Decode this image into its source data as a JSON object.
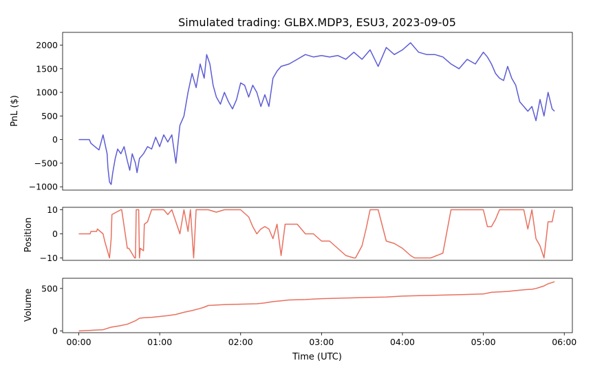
{
  "chart_data": [
    {
      "type": "line",
      "title": "Simulated trading: GLBX.MDP3, ESU3, 2023-09-05",
      "xlabel": "",
      "ylabel": "PnL ($)",
      "color": "#5b5bd6",
      "xlim": [
        -0.2,
        6.1
      ],
      "ylim": [
        -1070,
        2270
      ],
      "yticks": [
        -1000,
        -500,
        0,
        500,
        1000,
        1500,
        2000
      ],
      "ytick_labels": [
        "−1000",
        "−500",
        "0",
        "500",
        "1000",
        "1500",
        "2000"
      ],
      "x": [
        0.0,
        0.13,
        0.15,
        0.2,
        0.25,
        0.3,
        0.35,
        0.36,
        0.38,
        0.4,
        0.42,
        0.45,
        0.48,
        0.52,
        0.56,
        0.6,
        0.63,
        0.66,
        0.7,
        0.72,
        0.75,
        0.8,
        0.85,
        0.9,
        0.95,
        1.0,
        1.05,
        1.1,
        1.15,
        1.2,
        1.25,
        1.3,
        1.35,
        1.4,
        1.45,
        1.5,
        1.55,
        1.58,
        1.62,
        1.66,
        1.7,
        1.75,
        1.8,
        1.85,
        1.9,
        1.95,
        2.0,
        2.05,
        2.1,
        2.15,
        2.2,
        2.25,
        2.3,
        2.35,
        2.4,
        2.45,
        2.5,
        2.6,
        2.7,
        2.8,
        2.9,
        3.0,
        3.1,
        3.2,
        3.3,
        3.4,
        3.5,
        3.6,
        3.7,
        3.8,
        3.9,
        4.0,
        4.1,
        4.2,
        4.3,
        4.4,
        4.5,
        4.6,
        4.7,
        4.8,
        4.9,
        5.0,
        5.05,
        5.1,
        5.15,
        5.2,
        5.25,
        5.3,
        5.35,
        5.4,
        5.45,
        5.5,
        5.55,
        5.6,
        5.65,
        5.7,
        5.75,
        5.8,
        5.85,
        5.88
      ],
      "y": [
        0,
        0,
        -80,
        -150,
        -220,
        100,
        -300,
        -600,
        -900,
        -950,
        -700,
        -400,
        -200,
        -300,
        -150,
        -450,
        -650,
        -300,
        -500,
        -700,
        -400,
        -300,
        -150,
        -200,
        50,
        -150,
        100,
        -50,
        100,
        -500,
        300,
        500,
        1000,
        1400,
        1100,
        1600,
        1300,
        1800,
        1600,
        1150,
        900,
        750,
        1000,
        800,
        650,
        850,
        1200,
        1150,
        900,
        1150,
        1000,
        700,
        950,
        700,
        1300,
        1450,
        1550,
        1600,
        1700,
        1800,
        1750,
        1780,
        1750,
        1780,
        1700,
        1850,
        1700,
        1900,
        1550,
        1950,
        1800,
        1900,
        2050,
        1850,
        1800,
        1800,
        1750,
        1600,
        1500,
        1700,
        1600,
        1850,
        1750,
        1600,
        1400,
        1300,
        1250,
        1550,
        1300,
        1150,
        800,
        700,
        600,
        700,
        400,
        850,
        500,
        1000,
        650,
        600
      ]
    },
    {
      "type": "line",
      "xlabel": "",
      "ylabel": "Position",
      "color": "#e8705e",
      "xlim": [
        -0.2,
        6.1
      ],
      "ylim": [
        -11,
        11
      ],
      "yticks": [
        -10,
        0,
        10
      ],
      "ytick_labels": [
        "−10",
        "0",
        "10"
      ],
      "x": [
        0.0,
        0.14,
        0.15,
        0.22,
        0.23,
        0.3,
        0.32,
        0.38,
        0.4,
        0.41,
        0.52,
        0.53,
        0.6,
        0.62,
        0.69,
        0.7,
        0.71,
        0.74,
        0.75,
        0.76,
        0.8,
        0.81,
        0.85,
        0.9,
        0.95,
        1.0,
        1.05,
        1.1,
        1.15,
        1.25,
        1.3,
        1.35,
        1.38,
        1.42,
        1.45,
        1.5,
        1.6,
        1.7,
        1.8,
        1.9,
        2.0,
        2.1,
        2.15,
        2.2,
        2.25,
        2.3,
        2.35,
        2.4,
        2.45,
        2.5,
        2.55,
        2.6,
        2.7,
        2.8,
        2.9,
        3.0,
        3.1,
        3.2,
        3.3,
        3.4,
        3.42,
        3.5,
        3.55,
        3.6,
        3.7,
        3.8,
        3.9,
        3.95,
        4.0,
        4.1,
        4.15,
        4.25,
        4.35,
        4.5,
        4.6,
        4.7,
        4.8,
        4.9,
        4.95,
        5.0,
        5.05,
        5.1,
        5.15,
        5.2,
        5.3,
        5.4,
        5.5,
        5.55,
        5.6,
        5.65,
        5.7,
        5.75,
        5.8,
        5.85,
        5.88
      ],
      "y": [
        0,
        0,
        1,
        1,
        2,
        0,
        -3,
        -10,
        -2,
        8,
        10,
        10,
        -6,
        -6,
        -10,
        -10,
        10,
        10,
        -10,
        -6,
        -7,
        4,
        5,
        10,
        10,
        10,
        10,
        8,
        10,
        0,
        10,
        1,
        10,
        -10,
        10,
        10,
        10,
        9,
        10,
        10,
        10,
        7,
        3,
        0,
        2,
        3,
        2,
        -2,
        4,
        -9,
        4,
        4,
        4,
        0,
        0,
        -3,
        -3,
        -6,
        -9,
        -10,
        -10,
        -5,
        2,
        10,
        10,
        -3,
        -4,
        -5,
        -6,
        -9,
        -10,
        -10,
        -10,
        -8,
        10,
        10,
        10,
        10,
        10,
        10,
        3,
        3,
        6,
        10,
        10,
        10,
        10,
        2,
        10,
        -2,
        -5,
        -10,
        5,
        5,
        10
      ]
    },
    {
      "type": "line",
      "xlabel": "Time (UTC)",
      "ylabel": "Volume",
      "color": "#e8705e",
      "xlim": [
        -0.2,
        6.1
      ],
      "ylim": [
        -20,
        620
      ],
      "yticks": [
        0,
        500
      ],
      "ytick_labels": [
        "0",
        "500"
      ],
      "xticks": [
        0,
        1,
        2,
        3,
        4,
        5,
        6
      ],
      "xtick_labels": [
        "00:00",
        "01:00",
        "02:00",
        "03:00",
        "04:00",
        "05:00",
        "06:00"
      ],
      "x": [
        0.0,
        0.2,
        0.3,
        0.35,
        0.4,
        0.5,
        0.6,
        0.7,
        0.75,
        0.8,
        0.9,
        1.0,
        1.1,
        1.2,
        1.3,
        1.4,
        1.5,
        1.55,
        1.6,
        1.7,
        1.8,
        2.0,
        2.2,
        2.3,
        2.4,
        2.5,
        2.6,
        2.8,
        3.0,
        3.2,
        3.4,
        3.6,
        3.8,
        4.0,
        4.2,
        4.4,
        4.6,
        4.8,
        5.0,
        5.1,
        5.2,
        5.3,
        5.4,
        5.5,
        5.6,
        5.65,
        5.7,
        5.75,
        5.8,
        5.85,
        5.88
      ],
      "y": [
        0,
        10,
        15,
        30,
        45,
        60,
        80,
        120,
        150,
        155,
        160,
        170,
        180,
        195,
        220,
        240,
        265,
        280,
        300,
        305,
        310,
        315,
        320,
        330,
        345,
        355,
        365,
        370,
        380,
        385,
        390,
        395,
        400,
        410,
        415,
        420,
        425,
        430,
        435,
        455,
        460,
        465,
        475,
        485,
        490,
        500,
        515,
        530,
        555,
        570,
        580
      ]
    }
  ]
}
